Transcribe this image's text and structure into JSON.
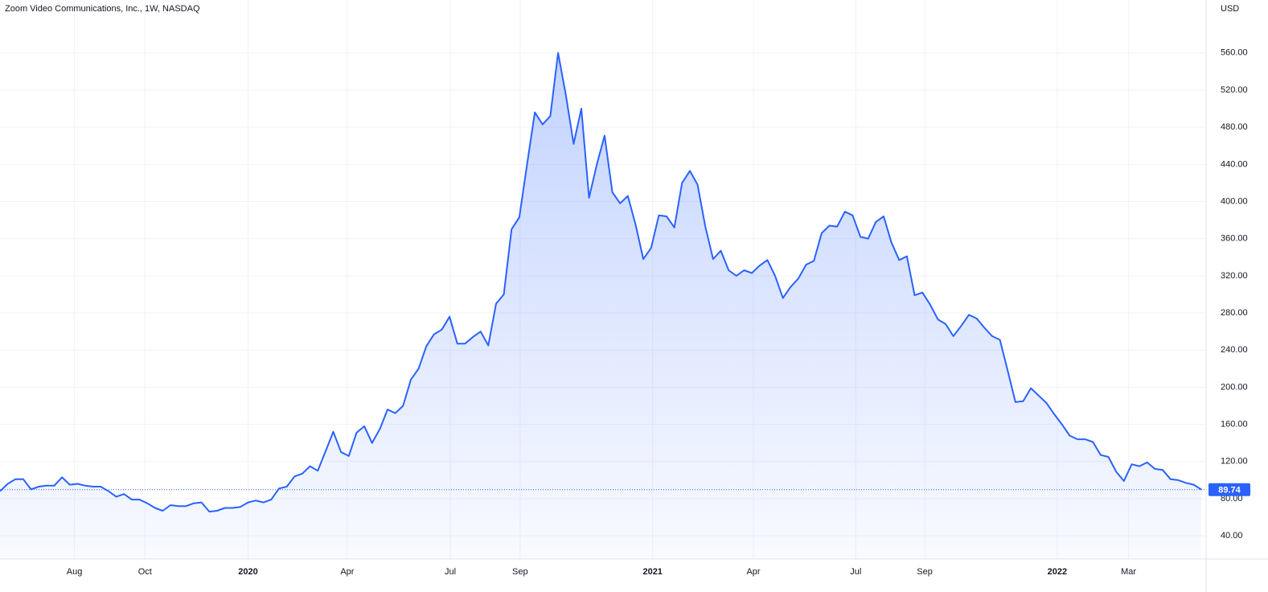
{
  "chart_data": {
    "type": "area",
    "title": "Zoom Video Communications, Inc., 1W, NASDAQ",
    "y_unit": "USD",
    "color": "#2962ff",
    "grid": true,
    "values": [
      88,
      96,
      101,
      101,
      90,
      93,
      94,
      94,
      103,
      95,
      96,
      94,
      93,
      93,
      88,
      82,
      85,
      79,
      79,
      75,
      70,
      67,
      73,
      72,
      72,
      75,
      76,
      66,
      67,
      70,
      70,
      71,
      76,
      78,
      76,
      79,
      91,
      93,
      104,
      107,
      115,
      110,
      131,
      152,
      130,
      126,
      151,
      158,
      140,
      155,
      176,
      172,
      180,
      208,
      220,
      244,
      257,
      262,
      276,
      247,
      247,
      254,
      260,
      245,
      290,
      300,
      370,
      383,
      440,
      496,
      483,
      492,
      560,
      515,
      462,
      500,
      404,
      440,
      471,
      410,
      398,
      406,
      375,
      338,
      350,
      385,
      384,
      372,
      420,
      433,
      418,
      373,
      338,
      347,
      326,
      320,
      326,
      323,
      331,
      337,
      320,
      296,
      308,
      317,
      332,
      336,
      366,
      374,
      373,
      389,
      385,
      362,
      360,
      378,
      384,
      356,
      337,
      341,
      299,
      302,
      289,
      273,
      268,
      255,
      266,
      278,
      274,
      264,
      255,
      251,
      218,
      184,
      185,
      199,
      191,
      183,
      171,
      160,
      148,
      144,
      144,
      141,
      127,
      125,
      109,
      99,
      117,
      115,
      119,
      112,
      111,
      101,
      100,
      97,
      95,
      89.74
    ],
    "xlim": [
      0,
      155.6
    ],
    "xticks": [
      {
        "value": 9.6,
        "label": "Aug"
      },
      {
        "value": 18.7,
        "label": "Oct"
      },
      {
        "value": 32,
        "label": "2020"
      },
      {
        "value": 44.8,
        "label": "Apr"
      },
      {
        "value": 58.1,
        "label": "Jul"
      },
      {
        "value": 67.1,
        "label": "Sep"
      },
      {
        "value": 84.2,
        "label": "2021"
      },
      {
        "value": 97.2,
        "label": "Apr"
      },
      {
        "value": 110.4,
        "label": "Jul"
      },
      {
        "value": 119.3,
        "label": "Sep"
      },
      {
        "value": 136.4,
        "label": "2022"
      },
      {
        "value": 145.6,
        "label": "Mar"
      }
    ],
    "ylim": [
      15,
      617
    ],
    "yticks": [
      {
        "value": 40,
        "label": "40.00"
      },
      {
        "value": 80,
        "label": "80.00"
      },
      {
        "value": 120,
        "label": "120.00"
      },
      {
        "value": 160,
        "label": "160.00"
      },
      {
        "value": 200,
        "label": "200.00"
      },
      {
        "value": 240,
        "label": "240.00"
      },
      {
        "value": 280,
        "label": "280.00"
      },
      {
        "value": 320,
        "label": "320.00"
      },
      {
        "value": 360,
        "label": "360.00"
      },
      {
        "value": 400,
        "label": "400.00"
      },
      {
        "value": 440,
        "label": "440.00"
      },
      {
        "value": 480,
        "label": "480.00"
      },
      {
        "value": 520,
        "label": "520.00"
      },
      {
        "value": 560,
        "label": "560.00"
      }
    ]
  }
}
